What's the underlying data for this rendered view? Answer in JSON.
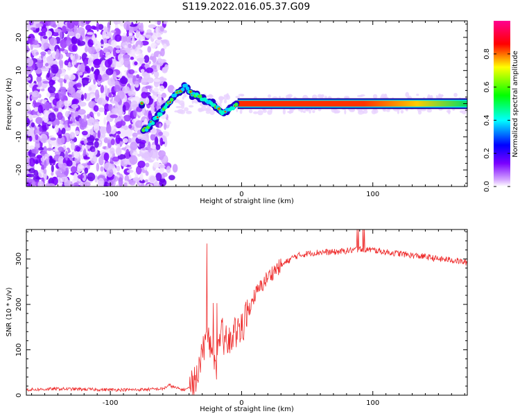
{
  "title": "S119.2022.016.05.37.G09",
  "chart_data": [
    {
      "type": "heatmap",
      "xlabel": "Height of straight line (km)",
      "ylabel": "Frequency (Hz)",
      "xlim": [
        -164,
        172
      ],
      "ylim": [
        -25,
        25
      ],
      "x_ticks": [
        -100,
        0,
        100
      ],
      "y_ticks": [
        -20,
        -10,
        0,
        10,
        20
      ],
      "colorbar": {
        "label": "Normalized spectral amplitude",
        "range": [
          0,
          1
        ],
        "ticks": [
          "0.0",
          "0.2",
          "0.4",
          "0.6",
          "0.8"
        ],
        "colors": [
          "#ffffff",
          "#7a00ff",
          "#0000ff",
          "#00ffff",
          "#00ff00",
          "#ffff00",
          "#ff0000",
          "#ff0090"
        ]
      },
      "signal_track": {
        "x": [
          -75,
          -70,
          -62,
          -55,
          -50,
          -45,
          -42,
          -38,
          -34,
          -30,
          -26,
          -22,
          -18,
          -14,
          -10,
          -6,
          -3,
          0,
          10,
          50,
          100,
          150,
          172
        ],
        "y": [
          -8.5,
          -6.5,
          -3,
          0.5,
          3,
          4.5,
          5.5,
          2.5,
          2.5,
          1.5,
          0.8,
          0,
          -1.5,
          -3,
          -2,
          -1,
          0,
          0,
          0,
          0,
          0,
          0,
          0
        ]
      }
    },
    {
      "type": "line",
      "xlabel": "Height of straight line (km)",
      "ylabel": "SNR (10 * v/v)",
      "xlim": [
        -164,
        172
      ],
      "ylim": [
        0,
        365
      ],
      "x_ticks": [
        -100,
        0,
        100
      ],
      "y_ticks": [
        0,
        100,
        200,
        300
      ],
      "color": "#ee2a2a",
      "series": [
        {
          "x": [
            -164,
            -140,
            -120,
            -100,
            -80,
            -60,
            -55,
            -50,
            -45,
            -40,
            -35,
            -30,
            -25,
            -20,
            -15,
            -10,
            -5,
            0,
            5,
            10,
            15,
            20,
            25,
            30,
            40,
            50,
            60,
            70,
            80,
            90,
            100,
            110,
            120,
            130,
            140,
            150,
            160,
            172
          ],
          "y": [
            12,
            14,
            13,
            12,
            12,
            14,
            22,
            16,
            12,
            15,
            35,
            95,
            120,
            60,
            130,
            110,
            140,
            150,
            185,
            220,
            240,
            260,
            275,
            285,
            305,
            312,
            315,
            315,
            318,
            322,
            320,
            315,
            312,
            308,
            305,
            300,
            298,
            292
          ]
        }
      ]
    }
  ]
}
